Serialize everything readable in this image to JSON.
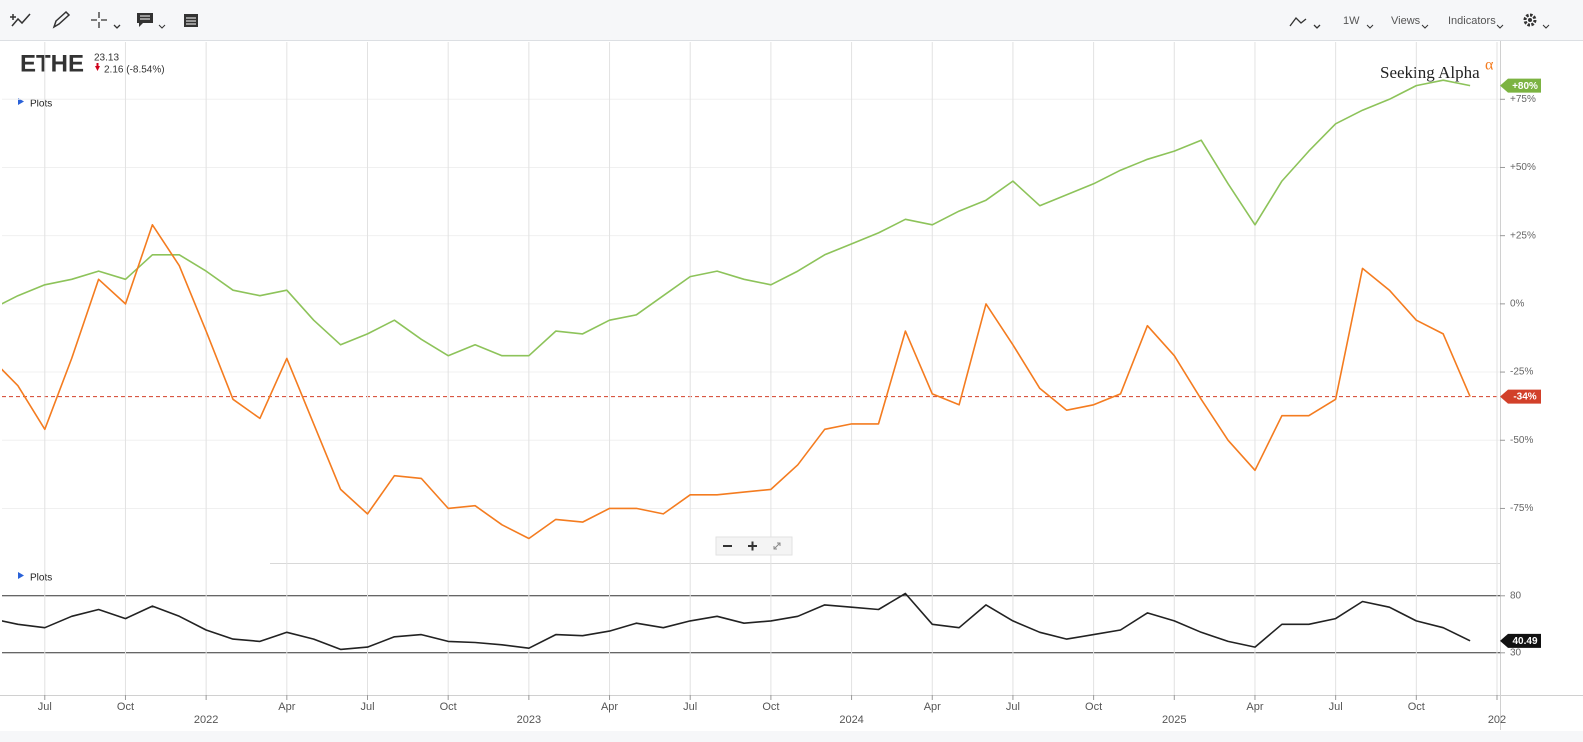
{
  "toolbar": {
    "interval": "1W",
    "views": "Views",
    "indicators": "Indicators"
  },
  "ticker": {
    "symbol": "ETHE",
    "price": 23.13,
    "change": "2.16 (-8.54%)"
  },
  "watermark": {
    "text": "Seeking Alpha",
    "symbol": "α"
  },
  "chart_data": [
    {
      "type": "line",
      "title": "Plots",
      "x": [
        "2021-05",
        "2021-06",
        "2021-07",
        "2021-08",
        "2021-09",
        "2021-10",
        "2021-11",
        "2021-12",
        "2022-01",
        "2022-02",
        "2022-03",
        "2022-04",
        "2022-05",
        "2022-06",
        "2022-07",
        "2022-08",
        "2022-09",
        "2022-10",
        "2022-11",
        "2022-12",
        "2023-01",
        "2023-02",
        "2023-03",
        "2023-04",
        "2023-05",
        "2023-06",
        "2023-07",
        "2023-08",
        "2023-09",
        "2023-10",
        "2023-11",
        "2023-12",
        "2024-01",
        "2024-02",
        "2024-03",
        "2024-04",
        "2024-05",
        "2024-06",
        "2024-07",
        "2024-08",
        "2024-09",
        "2024-10",
        "2024-11",
        "2024-12",
        "2025-01",
        "2025-02",
        "2025-03",
        "2025-04",
        "2025-05",
        "2025-06",
        "2025-07",
        "2025-08",
        "2025-09",
        "2025-10",
        "2025-11",
        "2025-12"
      ],
      "xlim": [
        "2021-05",
        "2026-01"
      ],
      "ylim": [
        -95,
        96
      ],
      "yticks": [
        {
          "value": 75,
          "label": "+75%"
        },
        {
          "value": 50,
          "label": "+50%"
        },
        {
          "value": 25,
          "label": "+25%"
        },
        {
          "value": 0,
          "label": "0%"
        },
        {
          "value": -25,
          "label": "-25%"
        },
        {
          "value": -50,
          "label": "-50%"
        },
        {
          "value": -75,
          "label": "-75%"
        }
      ],
      "grid": true,
      "series": [
        {
          "color": "#8dc35a",
          "last_label": "+80%",
          "label_color": "#7cb342",
          "values": [
            -2,
            3,
            7,
            9,
            12,
            9,
            18,
            18,
            12,
            5,
            3,
            5,
            -6,
            -15,
            -11,
            -6,
            -13,
            -19,
            -15,
            -19,
            -19,
            -10,
            -11,
            -6,
            -4,
            3,
            10,
            12,
            9,
            7,
            12,
            18,
            22,
            26,
            31,
            29,
            34,
            38,
            45,
            36,
            40,
            44,
            49,
            53,
            56,
            60,
            44,
            29,
            45,
            56,
            66,
            71,
            75,
            80,
            82,
            80
          ]
        },
        {
          "color": "#f47c20",
          "last_label": "-34%",
          "label_color": "#d2402a",
          "last_line": true,
          "values": [
            -20,
            -30,
            -46,
            -20,
            9,
            0,
            29,
            14,
            -10,
            -35,
            -42,
            -20,
            -44,
            -68,
            -77,
            -63,
            -64,
            -75,
            -74,
            -81,
            -86,
            -79,
            -80,
            -75,
            -75,
            -77,
            -70,
            -70,
            -69,
            -68,
            -59,
            -46,
            -44,
            -44,
            -10,
            -33,
            -37,
            0,
            -15,
            -31,
            -39,
            -37,
            -33,
            -8,
            -19,
            -35,
            -50,
            -61,
            -41,
            -41,
            -35,
            13,
            5,
            -6,
            -11,
            -34
          ]
        }
      ]
    },
    {
      "type": "line",
      "title": "Plots",
      "x": [
        "2021-05",
        "2021-06",
        "2021-07",
        "2021-08",
        "2021-09",
        "2021-10",
        "2021-11",
        "2021-12",
        "2022-01",
        "2022-02",
        "2022-03",
        "2022-04",
        "2022-05",
        "2022-06",
        "2022-07",
        "2022-08",
        "2022-09",
        "2022-10",
        "2022-11",
        "2022-12",
        "2023-01",
        "2023-02",
        "2023-03",
        "2023-04",
        "2023-05",
        "2023-06",
        "2023-07",
        "2023-08",
        "2023-09",
        "2023-10",
        "2023-11",
        "2023-12",
        "2024-01",
        "2024-02",
        "2024-03",
        "2024-04",
        "2024-05",
        "2024-06",
        "2024-07",
        "2024-08",
        "2024-09",
        "2024-10",
        "2024-11",
        "2024-12",
        "2025-01",
        "2025-02",
        "2025-03",
        "2025-04",
        "2025-05",
        "2025-06",
        "2025-07",
        "2025-08",
        "2025-09",
        "2025-10",
        "2025-11",
        "2025-12"
      ],
      "xlim": [
        "2021-05",
        "2026-01"
      ],
      "xticks": [
        {
          "value": "2021-07",
          "label": "Jul"
        },
        {
          "value": "2021-10",
          "label": "Oct"
        },
        {
          "value": "2022-01",
          "label": "2022"
        },
        {
          "value": "2022-04",
          "label": "Apr"
        },
        {
          "value": "2022-07",
          "label": "Jul"
        },
        {
          "value": "2022-10",
          "label": "Oct"
        },
        {
          "value": "2023-01",
          "label": "2023"
        },
        {
          "value": "2023-04",
          "label": "Apr"
        },
        {
          "value": "2023-07",
          "label": "Jul"
        },
        {
          "value": "2023-10",
          "label": "Oct"
        },
        {
          "value": "2024-01",
          "label": "2024"
        },
        {
          "value": "2024-04",
          "label": "Apr"
        },
        {
          "value": "2024-07",
          "label": "Jul"
        },
        {
          "value": "2024-10",
          "label": "Oct"
        },
        {
          "value": "2025-01",
          "label": "2025"
        },
        {
          "value": "2025-04",
          "label": "Apr"
        },
        {
          "value": "2025-07",
          "label": "Jul"
        },
        {
          "value": "2025-10",
          "label": "Oct"
        },
        {
          "value": "2026-01",
          "label": "202"
        }
      ],
      "ylim": [
        -7,
        107
      ],
      "yticks": [
        80,
        30
      ],
      "series": [
        {
          "color": "#222222",
          "label_color": "#111111",
          "values": [
            60,
            55,
            52,
            62,
            68,
            60,
            71,
            62,
            50,
            42,
            40,
            48,
            42,
            33,
            35,
            44,
            46,
            40,
            39,
            37,
            34,
            46,
            45,
            49,
            56,
            52,
            58,
            62,
            56,
            58,
            62,
            72,
            70,
            68,
            82,
            55,
            52,
            72,
            58,
            48,
            42,
            46,
            50,
            65,
            58,
            48,
            40,
            35,
            55,
            55,
            60,
            75,
            70,
            58,
            52,
            40.49
          ]
        }
      ]
    }
  ]
}
